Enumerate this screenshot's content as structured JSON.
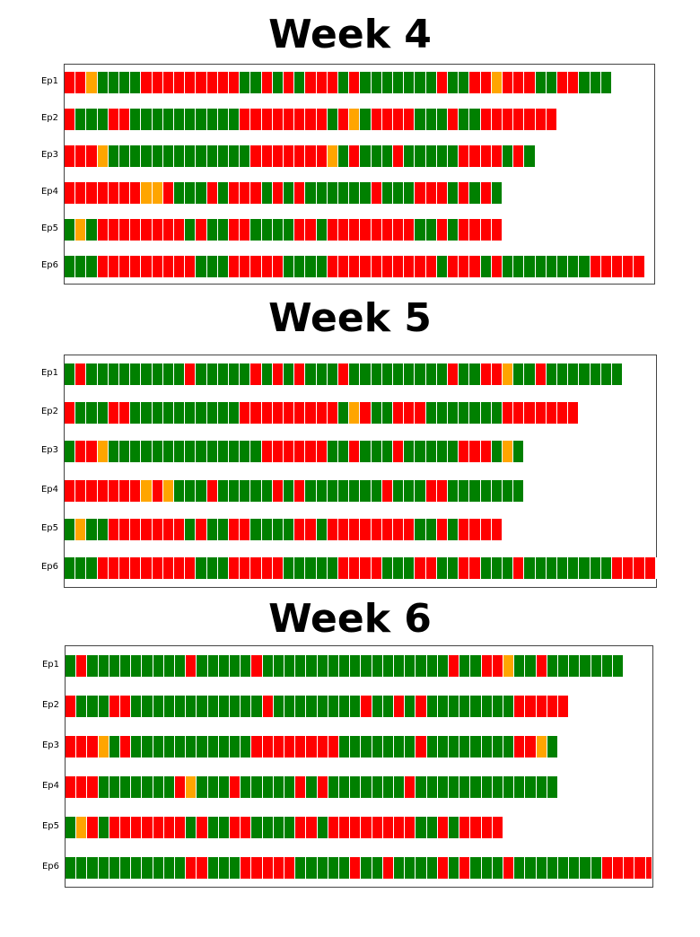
{
  "colors": {
    "G": "#008000",
    "R": "#ff0000",
    "O": "#ffa500"
  },
  "chart_data": [
    {
      "type": "table",
      "title": "Week 4",
      "rows": [
        "Ep1",
        "Ep2",
        "Ep3",
        "Ep4",
        "Ep5",
        "Ep6"
      ],
      "sequences": [
        "RROGGGGRRRRRRRRRGGRGRGRRRGRGGGGGGGRGGRRORRRGGRRGGG",
        "RGGGRRGGGGGGGGGGRRRRRRRRGROGRRRRGGGRGGRRRRRRR",
        "RRROGGGGGGGGGGGGGRRRRRRROGRGGGRGGGGGRRRRGRG",
        "RRRRRRROORGGGRGRRRGRGRGGGGGGRGGGRRRGRGRG",
        "GOGRRRRRRRRGRGGRRGGGGRRGRRRRRRRRGGRGRRRR",
        "GGGRRRRRRRRRGGGRRRRRGGGGRRRRRRRRRRGRRRGRGGGGGGGGRRRRR"
      ]
    },
    {
      "type": "table",
      "title": "Week 5",
      "rows": [
        "Ep1",
        "Ep2",
        "Ep3",
        "Ep4",
        "Ep5",
        "Ep6"
      ],
      "sequences": [
        "GRGGGGGGGGGRGGGGGRGRGRGGGRGGGGGGGGGRGGRROGGRGGGGGGG",
        "RGGGRRGGGGGGGGGGRRRRRRRRRGORGGRRRGGGGGGGRRRRRRR",
        "GRROGGGGGGGGGGGGGGRRRRRRGGRGGGRGGGGGRRRGOG",
        "RRRRRRROROGGGRGGGGGRGRGGGGGGGRGGGRRGGGGGGG",
        "GOGGRRRRRRRGRGGRRGGGGRRGRRRRRRRRGGRGRRRR",
        "GGGRRRRRRRRRGGGRRRRRGGGGGRRRRGGGRRGGRRGGGRGGGGGGGGRRRRR"
      ]
    },
    {
      "type": "table",
      "title": "Week 6",
      "rows": [
        "Ep1",
        "Ep2",
        "Ep3",
        "Ep4",
        "Ep5",
        "Ep6"
      ],
      "sequences": [
        "GRGGGGGGGGGRGGGGGRGGGGGGGGGGGGGGGGGRGGRROGGRGGGGGGG",
        "RGGGRRGGGGGGGGGGGGRGGGGGGGGRGGRGRGGGGGGGGRRRRR",
        "RRROGRGGGGGGGGGGGRRRRRRRRGGGGGGGRGGGGGGGGRROG",
        "RRRGGGGGGGROGGGRGGGGGRGRGGGGGGGRGGGGGGGGGGGGG",
        "GORGRRRRRRRGRGGRRGGGGRRGRRRRRRRRGGRGRRRR",
        "GGGGGGGGGGGRRGGGRRRRRGGGGGRGGRGGGGRGRGGGRGGGGGGGGRRRRR"
      ]
    }
  ]
}
